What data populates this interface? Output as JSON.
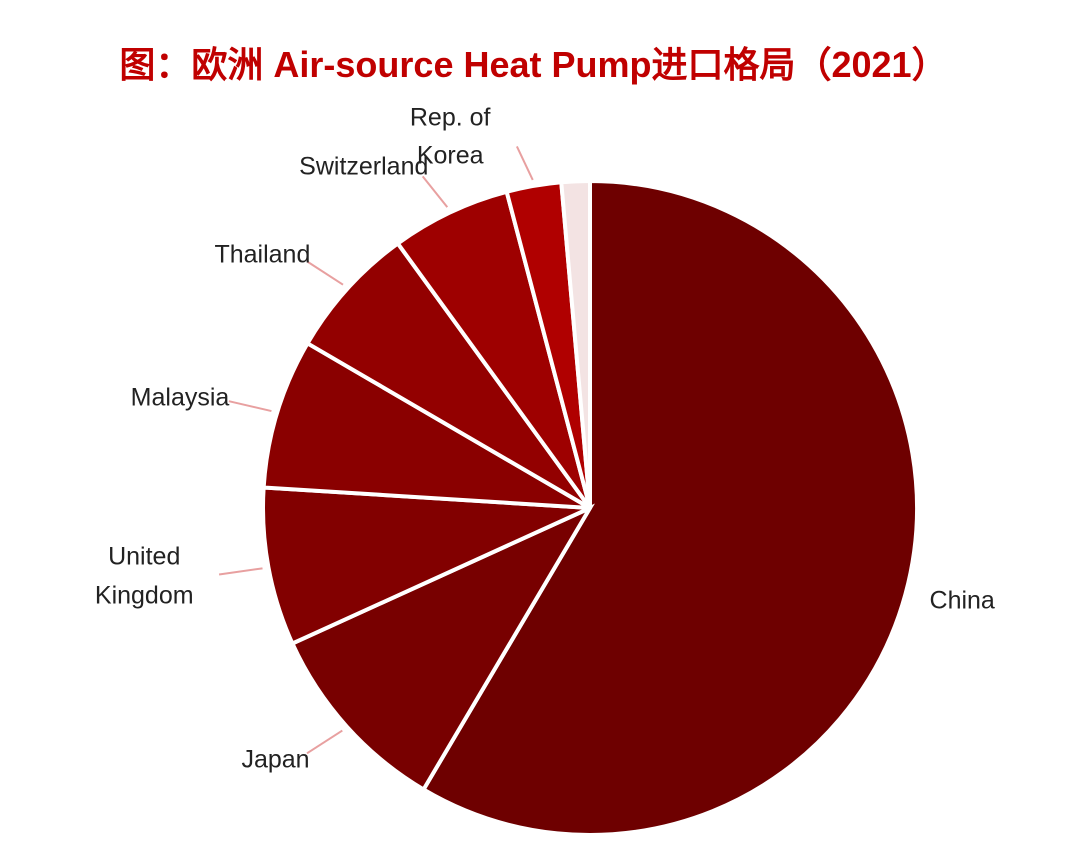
{
  "chart_data": {
    "type": "pie",
    "title": "图：欧洲 Air-source Heat Pump进口格局（2021）",
    "categories": [
      "China",
      "Japan",
      "United Kingdom",
      "Malaysia",
      "Thailand",
      "Switzerland",
      "Rep. of Korea",
      null
    ],
    "values": [
      58.5,
      9.7,
      7.8,
      7.4,
      6.6,
      5.9,
      2.7,
      1.4
    ],
    "colors": [
      "#6e0000",
      "#780000",
      "#820000",
      "#8a0000",
      "#930000",
      "#9e0000",
      "#b00000",
      "#f3e3e3"
    ],
    "start_angle": 0,
    "direction": "clockwise"
  }
}
